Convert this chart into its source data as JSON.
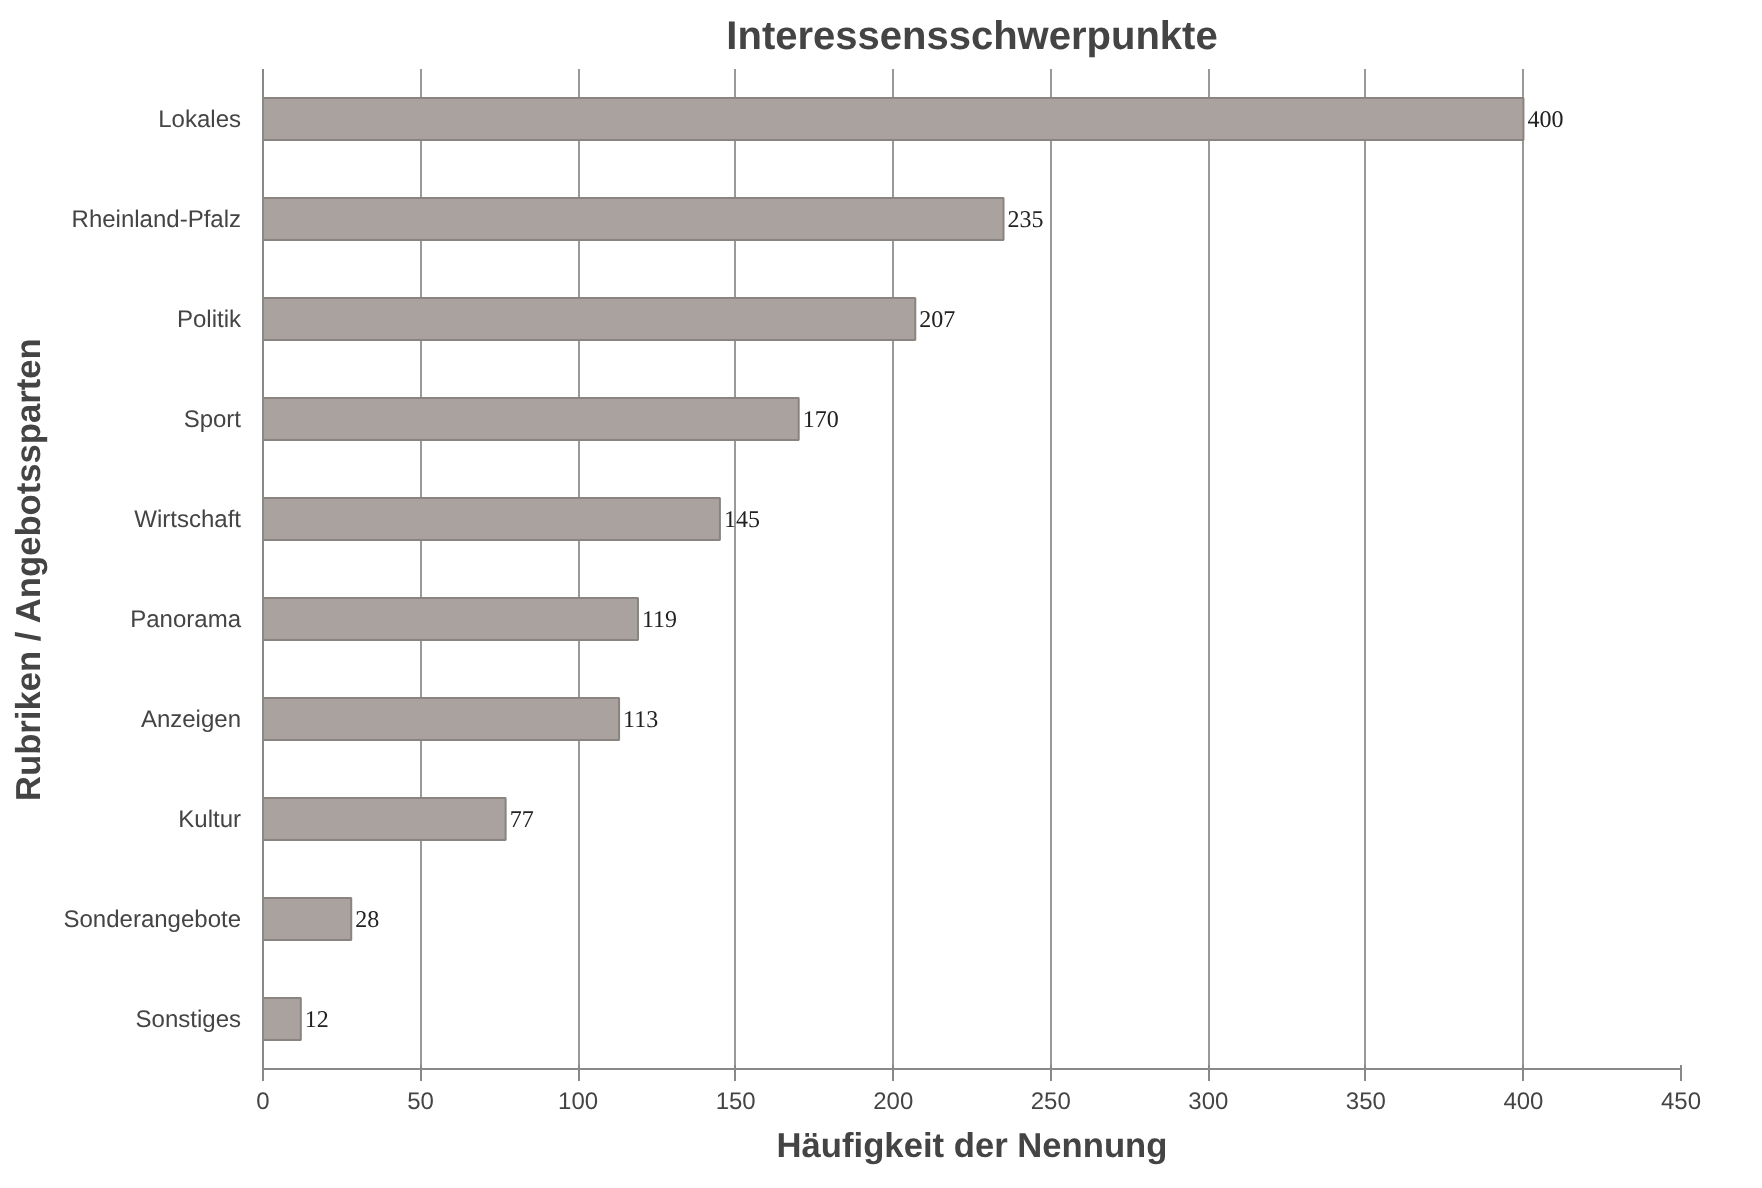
{
  "chart_data": {
    "type": "bar",
    "orientation": "horizontal",
    "title": "Interessensschwerpunkte",
    "xlabel": "Häufigkeit der Nennung",
    "ylabel": "Rubriken / Angebotssparten",
    "categories": [
      "Lokales",
      "Rheinland-Pfalz",
      "Politik",
      "Sport",
      "Wirtschaft",
      "Panorama",
      "Anzeigen",
      "Kultur",
      "Sonderangebote",
      "Sonstiges"
    ],
    "values": [
      400,
      235,
      207,
      170,
      145,
      119,
      113,
      77,
      28,
      12
    ],
    "color": "#aaa29e",
    "xlim": [
      0,
      450
    ],
    "xticks": [
      0,
      50,
      100,
      150,
      200,
      250,
      300,
      350,
      400,
      450
    ],
    "grid": "x",
    "data_labels": true
  }
}
